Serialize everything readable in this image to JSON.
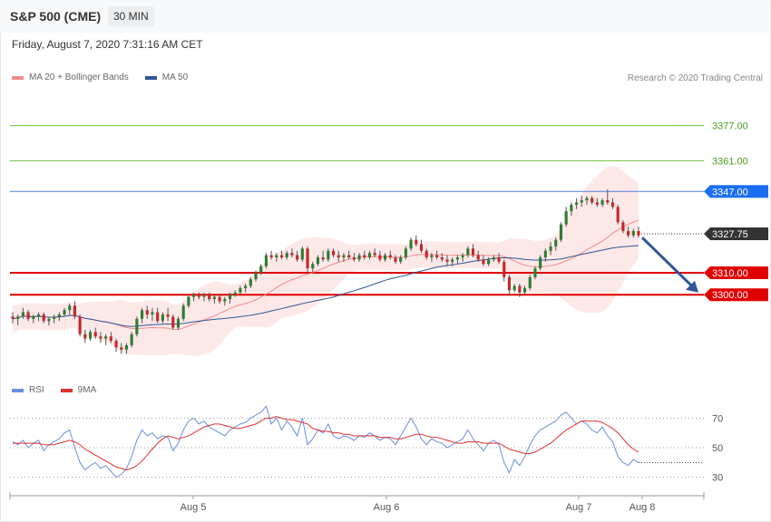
{
  "header": {
    "title": "S&P 500 (CME)",
    "timeframe": "30 MIN"
  },
  "datetime": "Friday, August 7, 2020 7:31:16 AM CET",
  "legend": {
    "ma20_label": "MA 20 + Bollinger Bands",
    "ma50_label": "MA 50",
    "rsi_label": "RSI",
    "ma9_label": "9MA",
    "credit": "Research © 2020 Trading Central"
  },
  "colors": {
    "ma20": "#f28a8a",
    "band_fill": "#fde2e2",
    "ma50": "#2f5597",
    "bull": "#2e7d32",
    "bear": "#c62828",
    "target_line": "#6cbf3c",
    "target_text": "#4d9a1f",
    "pivot": "#4a7de0",
    "support": "#e00000",
    "last": "#333333",
    "rsi": "#6a8fe0",
    "rsi_ma": "#e03030",
    "arrow": "#2f5597"
  },
  "chart_data": [
    {
      "type": "candlestick",
      "title": "S&P 500 (CME) 30 MIN",
      "x_ticks": [
        "Aug 5",
        "Aug 6",
        "Aug 7",
        "Aug 8"
      ],
      "ylim": [
        3265,
        3395
      ],
      "levels": [
        {
          "value": 3377.0,
          "label": "3377.00",
          "kind": "target"
        },
        {
          "value": 3361.0,
          "label": "3361.00",
          "kind": "target"
        },
        {
          "value": 3347.0,
          "label": "3347.00",
          "kind": "pivot"
        },
        {
          "value": 3327.75,
          "label": "3327.75",
          "kind": "last"
        },
        {
          "value": 3310.0,
          "label": "3310.00",
          "kind": "support"
        },
        {
          "value": 3300.0,
          "label": "3300.00",
          "kind": "support"
        }
      ],
      "forecast_arrow": {
        "from": 3326,
        "to": 3301
      },
      "ohlc": [
        [
          3290,
          3292,
          3287,
          3289
        ],
        [
          3289,
          3291,
          3286,
          3290
        ],
        [
          3290,
          3294,
          3289,
          3292
        ],
        [
          3292,
          3293,
          3288,
          3289
        ],
        [
          3289,
          3291,
          3287,
          3290
        ],
        [
          3290,
          3292,
          3288,
          3291
        ],
        [
          3291,
          3292,
          3287,
          3288
        ],
        [
          3288,
          3290,
          3286,
          3289
        ],
        [
          3289,
          3291,
          3287,
          3290
        ],
        [
          3290,
          3292,
          3288,
          3291
        ],
        [
          3291,
          3294,
          3290,
          3293
        ],
        [
          3293,
          3296,
          3291,
          3295
        ],
        [
          3295,
          3297,
          3289,
          3290
        ],
        [
          3290,
          3291,
          3281,
          3282
        ],
        [
          3282,
          3284,
          3278,
          3280
        ],
        [
          3280,
          3284,
          3279,
          3283
        ],
        [
          3283,
          3285,
          3280,
          3281
        ],
        [
          3281,
          3283,
          3278,
          3280
        ],
        [
          3280,
          3282,
          3277,
          3281
        ],
        [
          3281,
          3283,
          3278,
          3279
        ],
        [
          3279,
          3280,
          3274,
          3276
        ],
        [
          3276,
          3278,
          3273,
          3275
        ],
        [
          3275,
          3278,
          3273,
          3277
        ],
        [
          3277,
          3283,
          3276,
          3282
        ],
        [
          3282,
          3290,
          3281,
          3289
        ],
        [
          3289,
          3294,
          3287,
          3293
        ],
        [
          3293,
          3295,
          3289,
          3291
        ],
        [
          3291,
          3294,
          3288,
          3292
        ],
        [
          3292,
          3294,
          3287,
          3288
        ],
        [
          3288,
          3292,
          3287,
          3291
        ],
        [
          3291,
          3294,
          3288,
          3290
        ],
        [
          3290,
          3291,
          3284,
          3285
        ],
        [
          3285,
          3290,
          3284,
          3289
        ],
        [
          3289,
          3296,
          3288,
          3295
        ],
        [
          3295,
          3300,
          3294,
          3299
        ],
        [
          3299,
          3301,
          3297,
          3300
        ],
        [
          3300,
          3301,
          3298,
          3299
        ],
        [
          3299,
          3301,
          3297,
          3300
        ],
        [
          3300,
          3301,
          3297,
          3298
        ],
        [
          3298,
          3300,
          3296,
          3299
        ],
        [
          3299,
          3300,
          3296,
          3297
        ],
        [
          3297,
          3299,
          3295,
          3298
        ],
        [
          3298,
          3301,
          3296,
          3300
        ],
        [
          3300,
          3302,
          3299,
          3301
        ],
        [
          3301,
          3304,
          3300,
          3303
        ],
        [
          3303,
          3305,
          3301,
          3304
        ],
        [
          3304,
          3308,
          3303,
          3307
        ],
        [
          3307,
          3311,
          3306,
          3310
        ],
        [
          3310,
          3314,
          3309,
          3313
        ],
        [
          3313,
          3319,
          3312,
          3318
        ],
        [
          3318,
          3320,
          3316,
          3317
        ],
        [
          3317,
          3319,
          3315,
          3318
        ],
        [
          3318,
          3320,
          3316,
          3317
        ],
        [
          3317,
          3320,
          3316,
          3319
        ],
        [
          3319,
          3321,
          3317,
          3318
        ],
        [
          3318,
          3320,
          3315,
          3316
        ],
        [
          3316,
          3322,
          3315,
          3321
        ],
        [
          3321,
          3322,
          3310,
          3312
        ],
        [
          3312,
          3315,
          3310,
          3314
        ],
        [
          3314,
          3318,
          3313,
          3317
        ],
        [
          3317,
          3320,
          3315,
          3316
        ],
        [
          3316,
          3321,
          3315,
          3320
        ],
        [
          3320,
          3321,
          3317,
          3318
        ],
        [
          3318,
          3320,
          3315,
          3317
        ],
        [
          3317,
          3319,
          3315,
          3318
        ],
        [
          3318,
          3320,
          3316,
          3317
        ],
        [
          3317,
          3319,
          3315,
          3316
        ],
        [
          3316,
          3319,
          3315,
          3318
        ],
        [
          3318,
          3320,
          3316,
          3317
        ],
        [
          3317,
          3320,
          3316,
          3319
        ],
        [
          3319,
          3321,
          3317,
          3318
        ],
        [
          3318,
          3320,
          3315,
          3316
        ],
        [
          3316,
          3319,
          3315,
          3318
        ],
        [
          3318,
          3320,
          3316,
          3317
        ],
        [
          3317,
          3318,
          3314,
          3315
        ],
        [
          3315,
          3318,
          3314,
          3317
        ],
        [
          3317,
          3322,
          3316,
          3321
        ],
        [
          3321,
          3326,
          3320,
          3325
        ],
        [
          3325,
          3327,
          3322,
          3323
        ],
        [
          3323,
          3325,
          3319,
          3320
        ],
        [
          3320,
          3321,
          3316,
          3317
        ],
        [
          3317,
          3319,
          3315,
          3318
        ],
        [
          3318,
          3320,
          3316,
          3317
        ],
        [
          3317,
          3319,
          3315,
          3316
        ],
        [
          3316,
          3318,
          3313,
          3315
        ],
        [
          3315,
          3317,
          3313,
          3316
        ],
        [
          3316,
          3318,
          3314,
          3317
        ],
        [
          3317,
          3319,
          3315,
          3318
        ],
        [
          3318,
          3322,
          3317,
          3321
        ],
        [
          3321,
          3323,
          3317,
          3318
        ],
        [
          3318,
          3320,
          3315,
          3316
        ],
        [
          3316,
          3318,
          3313,
          3314
        ],
        [
          3314,
          3317,
          3313,
          3316
        ],
        [
          3316,
          3318,
          3315,
          3317
        ],
        [
          3317,
          3319,
          3314,
          3315
        ],
        [
          3315,
          3316,
          3306,
          3308
        ],
        [
          3308,
          3309,
          3300,
          3302
        ],
        [
          3302,
          3305,
          3301,
          3304
        ],
        [
          3304,
          3305,
          3299,
          3301
        ],
        [
          3301,
          3304,
          3300,
          3303
        ],
        [
          3303,
          3309,
          3302,
          3308
        ],
        [
          3308,
          3313,
          3307,
          3312
        ],
        [
          3312,
          3318,
          3311,
          3317
        ],
        [
          3317,
          3321,
          3315,
          3320
        ],
        [
          3320,
          3324,
          3318,
          3322
        ],
        [
          3322,
          3326,
          3320,
          3325
        ],
        [
          3325,
          3333,
          3324,
          3332
        ],
        [
          3332,
          3340,
          3331,
          3338
        ],
        [
          3338,
          3342,
          3336,
          3341
        ],
        [
          3341,
          3344,
          3339,
          3342
        ],
        [
          3342,
          3345,
          3340,
          3343
        ],
        [
          3343,
          3345,
          3341,
          3344
        ],
        [
          3344,
          3345,
          3341,
          3342
        ],
        [
          3342,
          3344,
          3340,
          3341
        ],
        [
          3341,
          3344,
          3340,
          3343
        ],
        [
          3343,
          3348,
          3341,
          3342
        ],
        [
          3342,
          3344,
          3339,
          3340
        ],
        [
          3340,
          3341,
          3332,
          3333
        ],
        [
          3333,
          3334,
          3328,
          3329
        ],
        [
          3329,
          3331,
          3326,
          3327
        ],
        [
          3327,
          3330,
          3326,
          3329
        ],
        [
          3329,
          3331,
          3326,
          3327
        ]
      ]
    },
    {
      "type": "line",
      "title": "RSI",
      "x_ticks": [
        "Aug 5",
        "Aug 6",
        "Aug 7",
        "Aug 8"
      ],
      "ylim": [
        20,
        80
      ],
      "y_ticks": [
        30,
        50,
        70
      ],
      "series": [
        {
          "name": "RSI",
          "values": [
            54,
            52,
            55,
            50,
            53,
            55,
            48,
            52,
            54,
            56,
            60,
            62,
            50,
            40,
            35,
            38,
            40,
            36,
            38,
            34,
            30,
            32,
            36,
            44,
            55,
            62,
            58,
            60,
            56,
            58,
            57,
            48,
            53,
            62,
            68,
            70,
            66,
            68,
            64,
            62,
            60,
            58,
            62,
            64,
            66,
            67,
            70,
            72,
            74,
            78,
            66,
            70,
            62,
            68,
            64,
            58,
            70,
            52,
            56,
            62,
            60,
            66,
            58,
            56,
            58,
            57,
            55,
            58,
            57,
            60,
            58,
            55,
            57,
            56,
            52,
            58,
            64,
            70,
            64,
            56,
            52,
            56,
            54,
            53,
            50,
            52,
            54,
            56,
            62,
            56,
            52,
            48,
            53,
            55,
            52,
            40,
            33,
            42,
            38,
            44,
            52,
            58,
            62,
            64,
            66,
            68,
            72,
            74,
            70,
            66,
            68,
            66,
            62,
            60,
            64,
            58,
            54,
            44,
            40,
            38,
            42,
            40
          ]
        },
        {
          "name": "9MA",
          "values": [
            53,
            53,
            53,
            53,
            53,
            53,
            52,
            52,
            52,
            53,
            54,
            55,
            54,
            52,
            49,
            47,
            45,
            43,
            41,
            39,
            37,
            36,
            35,
            36,
            38,
            41,
            45,
            49,
            53,
            56,
            58,
            57,
            56,
            57,
            58,
            60,
            62,
            64,
            65,
            66,
            66,
            65,
            64,
            63,
            63,
            64,
            65,
            66,
            68,
            70,
            70,
            71,
            70,
            69,
            69,
            68,
            67,
            66,
            63,
            62,
            61,
            61,
            60,
            60,
            59,
            59,
            58,
            58,
            58,
            58,
            58,
            57,
            57,
            57,
            56,
            56,
            57,
            58,
            59,
            59,
            58,
            57,
            57,
            56,
            55,
            54,
            53,
            53,
            54,
            54,
            54,
            53,
            53,
            53,
            53,
            51,
            49,
            48,
            47,
            46,
            46,
            47,
            49,
            51,
            53,
            56,
            59,
            62,
            64,
            66,
            68,
            68,
            68,
            68,
            67,
            65,
            63,
            60,
            56,
            52,
            49,
            47
          ]
        }
      ]
    }
  ]
}
